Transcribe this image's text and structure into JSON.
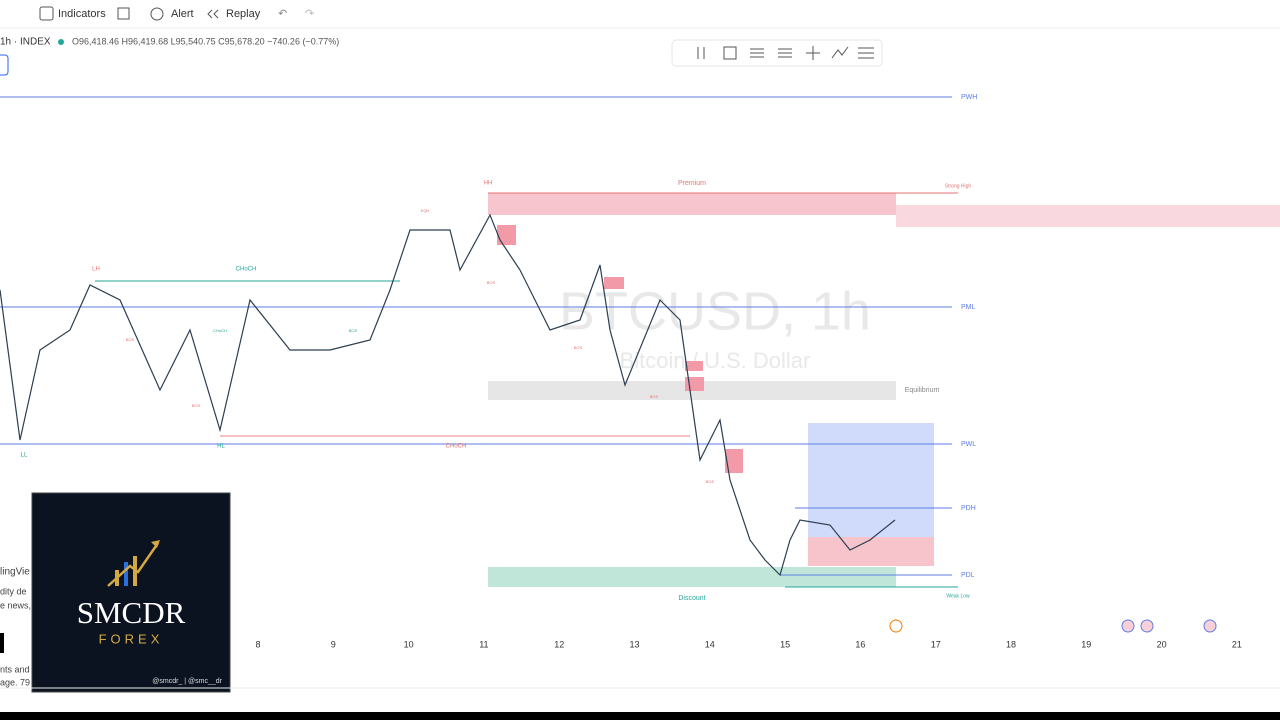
{
  "toolbar": {
    "indicators": "Indicators",
    "alert": "Alert",
    "replay": "Replay"
  },
  "symbol": {
    "name": "1h · INDEX",
    "ohlc": "O96,418.46 H96,419.68 L95,540.75 C95,678.20 −740.26 (−0.77%)"
  },
  "watermark": {
    "symbol": "BTCUSD, 1h",
    "description": "Bitcoin / U.S. Dollar"
  },
  "levels": [
    "PWH",
    "PML",
    "PWL",
    "PDH",
    "PDL"
  ],
  "zones": [
    "Premium",
    "Strong High",
    "Equilibrium",
    "Discount",
    "Weak Low"
  ],
  "annotations": [
    "HH",
    "LH",
    "CHoCH",
    "CHoCH",
    "HL",
    "LL",
    "CHoCH",
    "BOS",
    "BOS",
    "BOS",
    "BOS",
    "BOS",
    "BOS",
    "BOS",
    "EQH"
  ],
  "x_axis": {
    "ticks": [
      "8",
      "9",
      "10",
      "11",
      "12",
      "13",
      "14",
      "15",
      "16",
      "17",
      "18",
      "19",
      "20",
      "21"
    ]
  },
  "logo": {
    "title": "SMCDR",
    "subtitle": "FOREX",
    "handles": "@smcdr_ | @smc__dr"
  },
  "sidebar_fragments": [
    "lingVie",
    "dity de",
    "e news,",
    "nts and",
    "age. 79"
  ]
}
